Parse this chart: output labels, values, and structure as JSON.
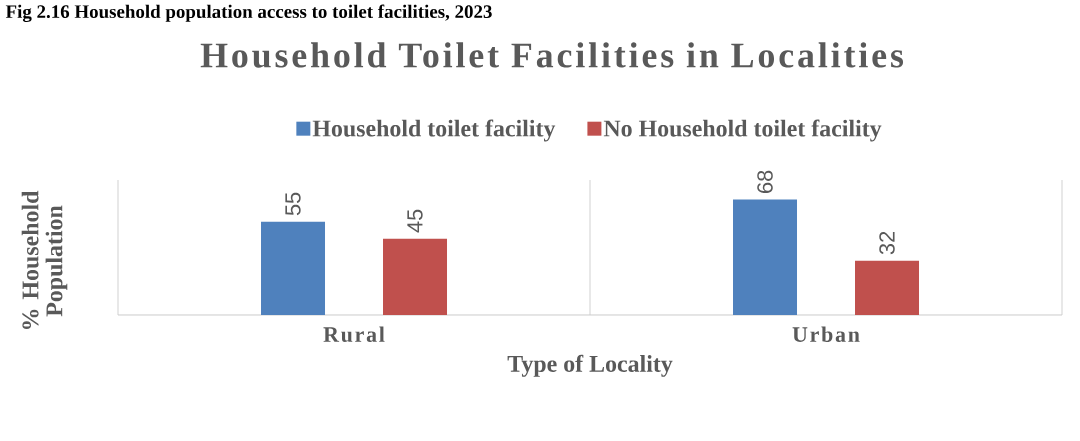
{
  "chart_data": {
    "type": "bar",
    "title": "Household Toilet Facilities in Localities",
    "annotations": [
      "Fig 2.16 Household population access to toilet facilities, 2023"
    ],
    "xlabel": "Type of Locality",
    "ylabel": "% Household Population",
    "categories": [
      "Rural",
      "Urban"
    ],
    "series": [
      {
        "name": "Household toilet facility",
        "color": "#4f81bd",
        "values": [
          55,
          68
        ]
      },
      {
        "name": "No Household toilet facility",
        "color": "#c0504d",
        "values": [
          45,
          32
        ]
      }
    ],
    "data_labels": true,
    "grid": "x",
    "legend": "top",
    "tick_labels": "x"
  }
}
